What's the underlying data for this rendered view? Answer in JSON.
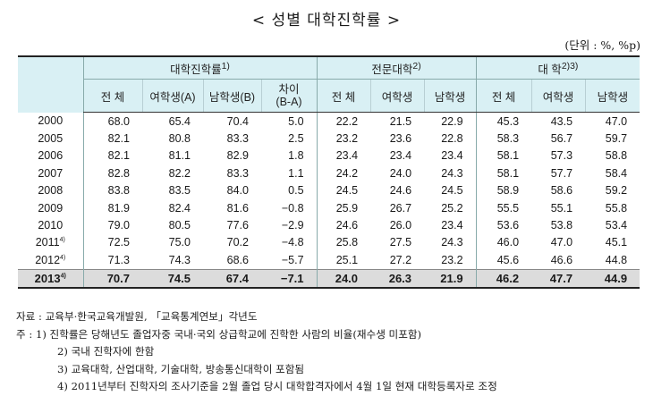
{
  "title": "< 성별 대학진학률 >",
  "unit": "(단위 : %, %p)",
  "groups": [
    {
      "label": "대학진학률",
      "sup": "1)"
    },
    {
      "label": "전문대학",
      "sup": "2)"
    },
    {
      "label": "대 학",
      "sup": "2)3)"
    }
  ],
  "subheaders": {
    "all": [
      "전 체",
      "여학생(A)",
      "남학생(B)"
    ],
    "diff_line1": "차이",
    "diff_line2": "(B-A)",
    "junior": [
      "전 체",
      "여학생",
      "남학생"
    ],
    "univ": [
      "전 체",
      "여학생",
      "남학생"
    ]
  },
  "rows": [
    {
      "year": "2000",
      "sup": "",
      "v": [
        "68.0",
        "65.4",
        "70.4",
        "5.0",
        "22.2",
        "21.5",
        "22.9",
        "45.3",
        "43.5",
        "47.0"
      ]
    },
    {
      "year": "2005",
      "sup": "",
      "v": [
        "82.1",
        "80.8",
        "83.3",
        "2.5",
        "23.2",
        "23.6",
        "22.8",
        "58.3",
        "56.7",
        "59.7"
      ]
    },
    {
      "year": "2006",
      "sup": "",
      "v": [
        "82.1",
        "81.1",
        "82.9",
        "1.8",
        "23.4",
        "23.4",
        "23.4",
        "58.1",
        "57.3",
        "58.8"
      ]
    },
    {
      "year": "2007",
      "sup": "",
      "v": [
        "82.8",
        "82.2",
        "83.3",
        "1.1",
        "24.2",
        "24.0",
        "24.3",
        "58.1",
        "57.7",
        "58.4"
      ]
    },
    {
      "year": "2008",
      "sup": "",
      "v": [
        "83.8",
        "83.5",
        "84.0",
        "0.5",
        "24.5",
        "24.6",
        "24.5",
        "58.9",
        "58.6",
        "59.2"
      ]
    },
    {
      "year": "2009",
      "sup": "",
      "v": [
        "81.9",
        "82.4",
        "81.6",
        "−0.8",
        "25.9",
        "26.7",
        "25.2",
        "55.5",
        "55.1",
        "55.8"
      ]
    },
    {
      "year": "2010",
      "sup": "",
      "v": [
        "79.0",
        "80.5",
        "77.6",
        "−2.9",
        "24.6",
        "26.0",
        "23.4",
        "53.6",
        "53.8",
        "53.4"
      ]
    },
    {
      "year": "2011",
      "sup": "4)",
      "v": [
        "72.5",
        "75.0",
        "70.2",
        "−4.8",
        "25.8",
        "27.5",
        "24.3",
        "46.0",
        "47.0",
        "45.1"
      ]
    },
    {
      "year": "2012",
      "sup": "4)",
      "v": [
        "71.3",
        "74.3",
        "68.6",
        "−5.7",
        "25.1",
        "27.2",
        "23.2",
        "45.6",
        "46.6",
        "44.8"
      ]
    },
    {
      "year": "2013",
      "sup": "4)",
      "v": [
        "70.7",
        "74.5",
        "67.4",
        "−7.1",
        "24.0",
        "26.3",
        "21.9",
        "46.2",
        "47.7",
        "44.9"
      ]
    }
  ],
  "notes": {
    "source": "자료 : 교육부·한국교육개발원, 「교육통계연보」각년도",
    "note1": "주 : 1) 진학률은 당해년도 졸업자중 국내·국외 상급학교에 진학한 사람의 비율(재수생 미포함)",
    "note2": "2) 국내 진학자에 한함",
    "note3": "3) 교육대학, 산업대학, 기술대학, 방송통신대학이 포함됨",
    "note4": "4) 2011년부터 진학자의 조사기준을 2월 졸업 당시 대학합격자에서 4월 1일 현재 대학등록자로 조정"
  }
}
